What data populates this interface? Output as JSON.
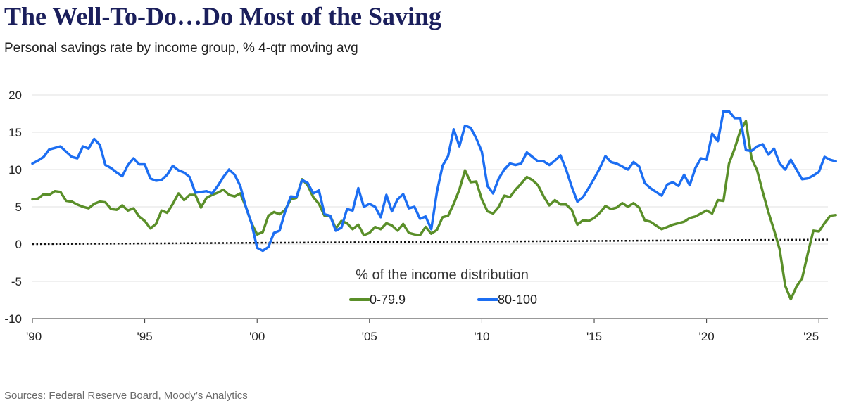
{
  "title": "The Well-To-Do…Do Most of the Saving",
  "subtitle": "Personal savings rate by income group, % 4-qtr moving avg",
  "source": "Sources: Federal Reserve Board, Moody’s Analytics",
  "chart_data": {
    "type": "line",
    "title": "The Well-To-Do…Do Most of the Saving",
    "subtitle": "Personal savings rate by income group, % 4-qtr moving avg",
    "xlabel": "",
    "ylabel": "",
    "xlim": [
      1990,
      2025.4
    ],
    "ylim": [
      -10,
      20
    ],
    "y_ticks": [
      20,
      15,
      10,
      5,
      0,
      -5,
      -10
    ],
    "y_tick_labels": [
      "20",
      "15",
      "10",
      "5",
      "0",
      "-5",
      "-10"
    ],
    "x_ticks": [
      1990,
      1995,
      2000,
      2005,
      2010,
      2015,
      2020,
      2025
    ],
    "x_tick_labels": [
      "'90",
      "'95",
      "'00",
      "'05",
      "'10",
      "'15",
      "'20",
      "'25"
    ],
    "grid": "horizontal",
    "legend": {
      "title": "% of the income distribution",
      "position": "bottom-center"
    },
    "reference_line": {
      "style": "dotted",
      "color": "#111111",
      "y_start": 0.0,
      "y_end": 0.6
    },
    "series": [
      {
        "name": "0-79.9",
        "color": "#5a8f29",
        "points": [
          [
            1990.0,
            6.0
          ],
          [
            1990.25,
            6.1
          ],
          [
            1990.5,
            6.7
          ],
          [
            1990.75,
            6.6
          ],
          [
            1991.0,
            7.1
          ],
          [
            1991.25,
            7.0
          ],
          [
            1991.5,
            5.8
          ],
          [
            1991.75,
            5.7
          ],
          [
            1992.0,
            5.3
          ],
          [
            1992.25,
            5.0
          ],
          [
            1992.5,
            4.8
          ],
          [
            1992.75,
            5.4
          ],
          [
            1993.0,
            5.7
          ],
          [
            1993.25,
            5.6
          ],
          [
            1993.5,
            4.7
          ],
          [
            1993.75,
            4.6
          ],
          [
            1994.0,
            5.2
          ],
          [
            1994.25,
            4.5
          ],
          [
            1994.5,
            4.8
          ],
          [
            1994.75,
            3.7
          ],
          [
            1995.0,
            3.1
          ],
          [
            1995.25,
            2.1
          ],
          [
            1995.5,
            2.7
          ],
          [
            1995.75,
            4.5
          ],
          [
            1996.0,
            4.2
          ],
          [
            1996.25,
            5.4
          ],
          [
            1996.5,
            6.8
          ],
          [
            1996.75,
            5.9
          ],
          [
            1997.0,
            6.6
          ],
          [
            1997.25,
            6.6
          ],
          [
            1997.5,
            4.9
          ],
          [
            1997.75,
            6.2
          ],
          [
            1998.0,
            6.6
          ],
          [
            1998.25,
            6.9
          ],
          [
            1998.5,
            7.3
          ],
          [
            1998.75,
            6.6
          ],
          [
            1999.0,
            6.4
          ],
          [
            1999.25,
            6.8
          ],
          [
            1999.5,
            5.0
          ],
          [
            1999.75,
            2.8
          ],
          [
            2000.0,
            1.3
          ],
          [
            2000.25,
            1.6
          ],
          [
            2000.5,
            3.8
          ],
          [
            2000.75,
            4.3
          ],
          [
            2001.0,
            4.0
          ],
          [
            2001.25,
            4.6
          ],
          [
            2001.5,
            6.0
          ],
          [
            2001.75,
            6.2
          ],
          [
            2002.0,
            8.7
          ],
          [
            2002.25,
            7.9
          ],
          [
            2002.5,
            6.3
          ],
          [
            2002.75,
            5.4
          ],
          [
            2003.0,
            3.8
          ],
          [
            2003.25,
            3.8
          ],
          [
            2003.5,
            2.1
          ],
          [
            2003.75,
            3.1
          ],
          [
            2004.0,
            2.8
          ],
          [
            2004.25,
            2.0
          ],
          [
            2004.5,
            2.6
          ],
          [
            2004.75,
            1.2
          ],
          [
            2005.0,
            1.5
          ],
          [
            2005.25,
            2.3
          ],
          [
            2005.5,
            2.0
          ],
          [
            2005.75,
            2.8
          ],
          [
            2006.0,
            2.5
          ],
          [
            2006.25,
            1.8
          ],
          [
            2006.5,
            2.7
          ],
          [
            2006.75,
            1.5
          ],
          [
            2007.0,
            1.3
          ],
          [
            2007.25,
            1.2
          ],
          [
            2007.5,
            2.3
          ],
          [
            2007.75,
            1.4
          ],
          [
            2008.0,
            1.9
          ],
          [
            2008.25,
            3.6
          ],
          [
            2008.5,
            3.8
          ],
          [
            2008.75,
            5.4
          ],
          [
            2009.0,
            7.3
          ],
          [
            2009.25,
            9.9
          ],
          [
            2009.5,
            8.3
          ],
          [
            2009.75,
            8.4
          ],
          [
            2010.0,
            6.0
          ],
          [
            2010.25,
            4.4
          ],
          [
            2010.5,
            4.1
          ],
          [
            2010.75,
            5.0
          ],
          [
            2011.0,
            6.5
          ],
          [
            2011.25,
            6.3
          ],
          [
            2011.5,
            7.3
          ],
          [
            2011.75,
            8.1
          ],
          [
            2012.0,
            9.0
          ],
          [
            2012.25,
            8.6
          ],
          [
            2012.5,
            7.9
          ],
          [
            2012.75,
            6.4
          ],
          [
            2013.0,
            5.2
          ],
          [
            2013.25,
            5.9
          ],
          [
            2013.5,
            5.3
          ],
          [
            2013.75,
            5.3
          ],
          [
            2014.0,
            4.6
          ],
          [
            2014.25,
            2.6
          ],
          [
            2014.5,
            3.2
          ],
          [
            2014.75,
            3.1
          ],
          [
            2015.0,
            3.5
          ],
          [
            2015.25,
            4.2
          ],
          [
            2015.5,
            5.1
          ],
          [
            2015.75,
            4.7
          ],
          [
            2016.0,
            4.9
          ],
          [
            2016.25,
            5.5
          ],
          [
            2016.5,
            5.0
          ],
          [
            2016.75,
            5.5
          ],
          [
            2017.0,
            4.9
          ],
          [
            2017.25,
            3.2
          ],
          [
            2017.5,
            3.0
          ],
          [
            2017.75,
            2.5
          ],
          [
            2018.0,
            2.0
          ],
          [
            2018.25,
            2.3
          ],
          [
            2018.5,
            2.6
          ],
          [
            2018.75,
            2.8
          ],
          [
            2019.0,
            3.0
          ],
          [
            2019.25,
            3.5
          ],
          [
            2019.5,
            3.7
          ],
          [
            2019.75,
            4.1
          ],
          [
            2020.0,
            4.5
          ],
          [
            2020.25,
            4.1
          ],
          [
            2020.5,
            5.9
          ],
          [
            2020.75,
            5.8
          ],
          [
            2021.0,
            10.8
          ],
          [
            2021.25,
            12.8
          ],
          [
            2021.5,
            15.2
          ],
          [
            2021.75,
            16.5
          ],
          [
            2022.0,
            11.5
          ],
          [
            2022.25,
            9.9
          ],
          [
            2022.5,
            7.0
          ],
          [
            2022.75,
            4.3
          ],
          [
            2023.0,
            1.9
          ],
          [
            2023.25,
            -0.7
          ],
          [
            2023.5,
            -5.6
          ],
          [
            2023.75,
            -7.4
          ],
          [
            2024.0,
            -5.7
          ],
          [
            2024.25,
            -4.6
          ],
          [
            2024.5,
            -1.3
          ],
          [
            2024.75,
            1.8
          ],
          [
            2025.0,
            1.7
          ],
          [
            2025.25,
            2.8
          ],
          [
            2025.5,
            3.8
          ],
          [
            2025.75,
            3.9
          ]
        ]
      },
      {
        "name": "80-100",
        "color": "#1c6ef2",
        "points": [
          [
            1990.0,
            10.8
          ],
          [
            1990.25,
            11.2
          ],
          [
            1990.5,
            11.7
          ],
          [
            1990.75,
            12.7
          ],
          [
            1991.0,
            12.9
          ],
          [
            1991.25,
            13.1
          ],
          [
            1991.5,
            12.4
          ],
          [
            1991.75,
            11.7
          ],
          [
            1992.0,
            11.5
          ],
          [
            1992.25,
            13.1
          ],
          [
            1992.5,
            12.8
          ],
          [
            1992.75,
            14.1
          ],
          [
            1993.0,
            13.3
          ],
          [
            1993.25,
            10.6
          ],
          [
            1993.5,
            10.2
          ],
          [
            1993.75,
            9.6
          ],
          [
            1994.0,
            9.1
          ],
          [
            1994.25,
            10.6
          ],
          [
            1994.5,
            11.5
          ],
          [
            1994.75,
            10.7
          ],
          [
            1995.0,
            10.7
          ],
          [
            1995.25,
            8.8
          ],
          [
            1995.5,
            8.5
          ],
          [
            1995.75,
            8.6
          ],
          [
            1996.0,
            9.3
          ],
          [
            1996.25,
            10.5
          ],
          [
            1996.5,
            9.9
          ],
          [
            1996.75,
            9.6
          ],
          [
            1997.0,
            9.0
          ],
          [
            1997.25,
            6.9
          ],
          [
            1997.5,
            7.0
          ],
          [
            1997.75,
            7.1
          ],
          [
            1998.0,
            6.8
          ],
          [
            1998.25,
            7.8
          ],
          [
            1998.5,
            9.0
          ],
          [
            1998.75,
            10.0
          ],
          [
            1999.0,
            9.3
          ],
          [
            1999.25,
            7.8
          ],
          [
            1999.5,
            5.0
          ],
          [
            1999.75,
            2.8
          ],
          [
            2000.0,
            -0.5
          ],
          [
            2000.25,
            -0.9
          ],
          [
            2000.5,
            -0.4
          ],
          [
            2000.75,
            1.5
          ],
          [
            2001.0,
            1.8
          ],
          [
            2001.25,
            4.4
          ],
          [
            2001.5,
            6.4
          ],
          [
            2001.75,
            6.3
          ],
          [
            2002.0,
            8.6
          ],
          [
            2002.25,
            8.2
          ],
          [
            2002.5,
            6.8
          ],
          [
            2002.75,
            7.2
          ],
          [
            2003.0,
            4.0
          ],
          [
            2003.25,
            3.8
          ],
          [
            2003.5,
            1.8
          ],
          [
            2003.75,
            2.2
          ],
          [
            2004.0,
            4.7
          ],
          [
            2004.25,
            4.5
          ],
          [
            2004.5,
            7.5
          ],
          [
            2004.75,
            5.0
          ],
          [
            2005.0,
            5.4
          ],
          [
            2005.25,
            5.0
          ],
          [
            2005.5,
            3.6
          ],
          [
            2005.75,
            6.6
          ],
          [
            2006.0,
            4.4
          ],
          [
            2006.25,
            6.0
          ],
          [
            2006.5,
            6.7
          ],
          [
            2006.75,
            4.8
          ],
          [
            2007.0,
            5.0
          ],
          [
            2007.25,
            3.4
          ],
          [
            2007.5,
            3.7
          ],
          [
            2007.75,
            2.0
          ],
          [
            2008.0,
            7.0
          ],
          [
            2008.25,
            10.5
          ],
          [
            2008.5,
            11.8
          ],
          [
            2008.75,
            15.4
          ],
          [
            2009.0,
            13.1
          ],
          [
            2009.25,
            15.9
          ],
          [
            2009.5,
            15.6
          ],
          [
            2009.75,
            14.2
          ],
          [
            2010.0,
            12.4
          ],
          [
            2010.25,
            7.8
          ],
          [
            2010.5,
            6.8
          ],
          [
            2010.75,
            8.8
          ],
          [
            2011.0,
            10.0
          ],
          [
            2011.25,
            10.8
          ],
          [
            2011.5,
            10.6
          ],
          [
            2011.75,
            10.8
          ],
          [
            2012.0,
            12.3
          ],
          [
            2012.25,
            11.7
          ],
          [
            2012.5,
            11.1
          ],
          [
            2012.75,
            11.1
          ],
          [
            2013.0,
            10.6
          ],
          [
            2013.25,
            11.2
          ],
          [
            2013.5,
            11.9
          ],
          [
            2013.75,
            10.0
          ],
          [
            2014.0,
            7.7
          ],
          [
            2014.25,
            5.7
          ],
          [
            2014.5,
            6.3
          ],
          [
            2014.75,
            7.5
          ],
          [
            2015.0,
            8.8
          ],
          [
            2015.25,
            10.2
          ],
          [
            2015.5,
            11.8
          ],
          [
            2015.75,
            11.0
          ],
          [
            2016.0,
            10.8
          ],
          [
            2016.25,
            10.4
          ],
          [
            2016.5,
            10.0
          ],
          [
            2016.75,
            11.0
          ],
          [
            2017.0,
            10.4
          ],
          [
            2017.25,
            8.2
          ],
          [
            2017.5,
            7.5
          ],
          [
            2017.75,
            7.0
          ],
          [
            2018.0,
            6.5
          ],
          [
            2018.25,
            8.0
          ],
          [
            2018.5,
            8.3
          ],
          [
            2018.75,
            7.8
          ],
          [
            2019.0,
            9.3
          ],
          [
            2019.25,
            7.9
          ],
          [
            2019.5,
            10.2
          ],
          [
            2019.75,
            11.5
          ],
          [
            2020.0,
            11.3
          ],
          [
            2020.25,
            14.8
          ],
          [
            2020.5,
            13.8
          ],
          [
            2020.75,
            17.8
          ],
          [
            2021.0,
            17.8
          ],
          [
            2021.25,
            16.9
          ],
          [
            2021.5,
            16.9
          ],
          [
            2021.75,
            12.6
          ],
          [
            2022.0,
            12.5
          ],
          [
            2022.25,
            13.1
          ],
          [
            2022.5,
            13.4
          ],
          [
            2022.75,
            12.0
          ],
          [
            2023.0,
            12.8
          ],
          [
            2023.25,
            10.8
          ],
          [
            2023.5,
            10.0
          ],
          [
            2023.75,
            11.3
          ],
          [
            2024.0,
            10.0
          ],
          [
            2024.25,
            8.7
          ],
          [
            2024.5,
            8.8
          ],
          [
            2024.75,
            9.2
          ],
          [
            2025.0,
            9.7
          ],
          [
            2025.25,
            11.7
          ],
          [
            2025.5,
            11.3
          ],
          [
            2025.75,
            11.1
          ]
        ]
      }
    ]
  }
}
